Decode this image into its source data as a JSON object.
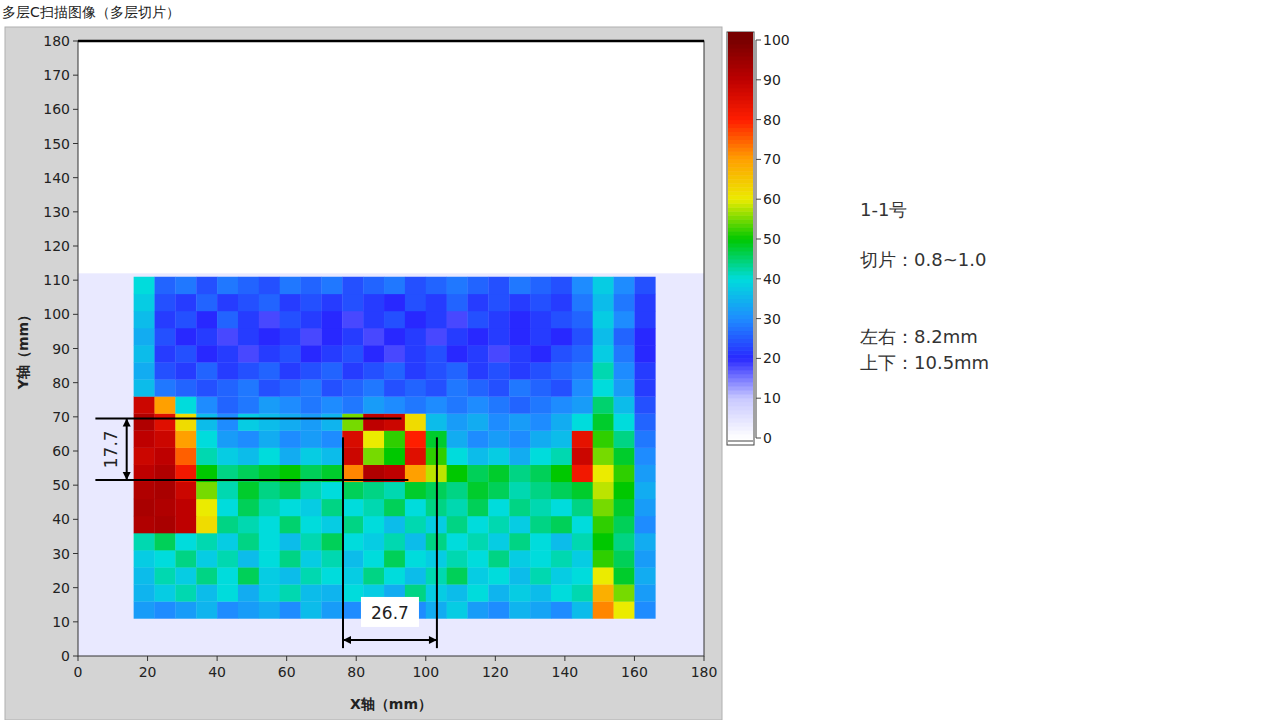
{
  "chart_data": {
    "type": "heatmap",
    "title": "多层C扫描图像（多层切片）",
    "x_label": "X轴（mm）",
    "y_label": "Y轴（mm）",
    "xlim": [
      0,
      180
    ],
    "ylim": [
      0,
      180
    ],
    "xticks": [
      0,
      20,
      40,
      60,
      80,
      100,
      120,
      140,
      160,
      180
    ],
    "yticks": [
      0,
      10,
      20,
      30,
      40,
      50,
      60,
      70,
      80,
      90,
      100,
      110,
      120,
      130,
      140,
      150,
      160,
      170,
      180
    ],
    "scan_extent": {
      "x": [
        0,
        180
      ],
      "y": [
        0,
        112
      ],
      "value": 4
    },
    "x": [
      16,
      22,
      28,
      34,
      40,
      46,
      52,
      58,
      64,
      70,
      76,
      82,
      88,
      94,
      100,
      106,
      112,
      118,
      124,
      130,
      136,
      142,
      148,
      154,
      160,
      166
    ],
    "y": [
      11,
      16,
      21,
      26,
      31,
      36,
      41,
      46,
      51,
      56,
      61,
      66,
      71,
      76,
      81,
      86,
      91,
      96,
      101,
      106,
      111
    ],
    "values": [
      [
        32,
        30,
        32,
        35,
        30,
        32,
        34,
        30,
        36,
        32,
        30,
        33,
        35,
        30,
        34,
        38,
        32,
        30,
        35,
        33,
        30,
        36,
        72,
        60,
        30
      ],
      [
        35,
        38,
        42,
        36,
        40,
        34,
        38,
        42,
        36,
        35,
        40,
        38,
        34,
        44,
        38,
        36,
        40,
        35,
        38,
        36,
        40,
        42,
        68,
        55,
        32
      ],
      [
        36,
        42,
        38,
        44,
        40,
        46,
        38,
        36,
        42,
        40,
        38,
        44,
        40,
        36,
        42,
        46,
        38,
        40,
        36,
        42,
        38,
        40,
        60,
        48,
        34
      ],
      [
        38,
        40,
        44,
        38,
        42,
        36,
        40,
        44,
        38,
        42,
        36,
        40,
        46,
        40,
        38,
        42,
        40,
        44,
        38,
        40,
        42,
        38,
        52,
        46,
        32
      ],
      [
        42,
        46,
        40,
        42,
        38,
        44,
        40,
        36,
        42,
        46,
        40,
        38,
        42,
        36,
        44,
        40,
        42,
        38,
        44,
        40,
        36,
        42,
        50,
        44,
        34
      ],
      [
        92,
        93,
        90,
        62,
        44,
        42,
        40,
        45,
        40,
        38,
        44,
        40,
        36,
        42,
        38,
        44,
        40,
        42,
        38,
        44,
        46,
        40,
        52,
        46,
        30
      ],
      [
        93,
        92,
        90,
        60,
        40,
        46,
        42,
        40,
        38,
        44,
        40,
        42,
        46,
        40,
        44,
        42,
        46,
        40,
        44,
        42,
        40,
        44,
        55,
        48,
        32
      ],
      [
        92,
        93,
        88,
        55,
        42,
        48,
        44,
        46,
        42,
        40,
        46,
        44,
        42,
        48,
        46,
        44,
        48,
        46,
        42,
        44,
        46,
        48,
        58,
        50,
        34
      ],
      [
        90,
        92,
        82,
        50,
        44,
        46,
        48,
        50,
        46,
        48,
        72,
        92,
        90,
        70,
        58,
        50,
        46,
        48,
        44,
        46,
        50,
        82,
        60,
        52,
        32
      ],
      [
        88,
        90,
        75,
        42,
        38,
        36,
        40,
        34,
        38,
        36,
        88,
        55,
        50,
        85,
        52,
        40,
        36,
        38,
        34,
        40,
        42,
        88,
        55,
        48,
        30
      ],
      [
        90,
        88,
        70,
        40,
        32,
        30,
        34,
        30,
        32,
        30,
        86,
        60,
        52,
        80,
        48,
        34,
        30,
        32,
        30,
        34,
        36,
        84,
        52,
        44,
        28
      ],
      [
        92,
        85,
        62,
        36,
        30,
        38,
        36,
        34,
        32,
        35,
        55,
        90,
        88,
        62,
        36,
        32,
        34,
        30,
        32,
        30,
        34,
        40,
        48,
        40,
        26
      ],
      [
        88,
        70,
        40,
        30,
        26,
        28,
        32,
        30,
        28,
        30,
        28,
        32,
        30,
        28,
        30,
        28,
        30,
        28,
        26,
        28,
        30,
        32,
        45,
        36,
        24
      ],
      [
        36,
        28,
        26,
        24,
        26,
        28,
        24,
        26,
        28,
        24,
        26,
        28,
        24,
        26,
        24,
        28,
        26,
        24,
        28,
        26,
        24,
        30,
        40,
        32,
        22
      ],
      [
        34,
        24,
        22,
        26,
        22,
        24,
        26,
        22,
        24,
        26,
        22,
        24,
        26,
        22,
        24,
        26,
        22,
        24,
        22,
        24,
        26,
        28,
        42,
        30,
        22
      ],
      [
        36,
        22,
        24,
        20,
        22,
        18,
        22,
        24,
        20,
        22,
        24,
        20,
        18,
        22,
        24,
        20,
        22,
        18,
        22,
        20,
        24,
        26,
        38,
        28,
        20
      ],
      [
        34,
        24,
        20,
        22,
        18,
        22,
        20,
        22,
        18,
        20,
        22,
        18,
        20,
        22,
        18,
        22,
        20,
        22,
        20,
        22,
        20,
        24,
        36,
        26,
        20
      ],
      [
        36,
        22,
        24,
        20,
        26,
        22,
        18,
        24,
        22,
        20,
        18,
        22,
        24,
        20,
        22,
        18,
        24,
        22,
        20,
        22,
        24,
        26,
        38,
        30,
        22
      ],
      [
        38,
        24,
        22,
        26,
        22,
        24,
        26,
        22,
        24,
        22,
        24,
        22,
        20,
        24,
        22,
        26,
        22,
        24,
        22,
        24,
        22,
        28,
        36,
        28,
        22
      ],
      [
        40,
        26,
        28,
        24,
        28,
        26,
        24,
        28,
        26,
        28,
        24,
        26,
        28,
        24,
        26,
        28,
        26,
        24,
        28,
        26,
        24,
        30,
        38,
        30,
        24
      ]
    ],
    "colorbar": {
      "range": [
        0,
        100
      ],
      "ticks": [
        0,
        10,
        20,
        30,
        40,
        50,
        60,
        70,
        80,
        90,
        100
      ]
    },
    "annotations": [
      {
        "text": "17.7",
        "lines": [
          [
            5,
            69.5,
            93,
            69.5
          ],
          [
            5,
            51.5,
            95,
            51.5
          ]
        ],
        "arrow": [
          14,
          69.5,
          14,
          51.5
        ]
      },
      {
        "text": "26.7",
        "lines": [
          [
            76.2,
            64,
            76.2,
            2.3
          ],
          [
            103.2,
            64,
            103.2,
            2.3
          ]
        ],
        "arrow": [
          76.2,
          4.7,
          103.2,
          4.7
        ]
      }
    ],
    "notes": [
      "1-1号",
      "切片：0.8~1.0",
      "左右：8.2mm",
      "上下：10.5mm"
    ]
  }
}
